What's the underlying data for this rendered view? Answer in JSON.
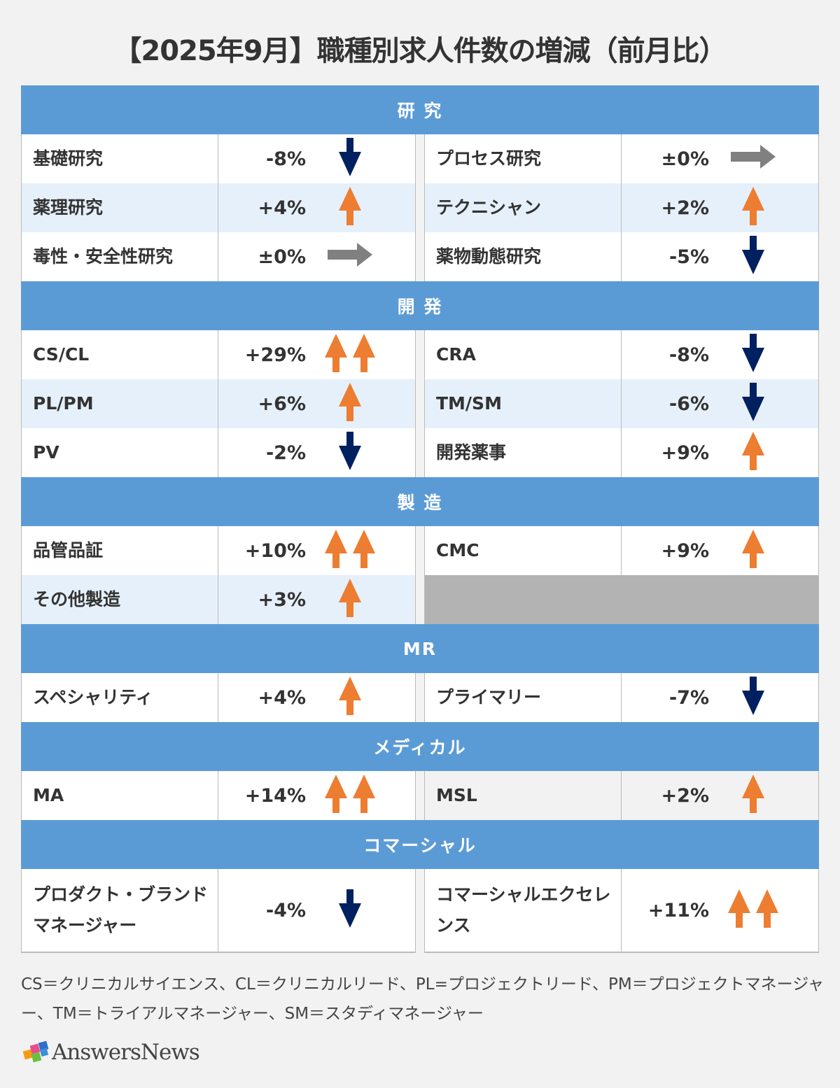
{
  "title": "【2025年9月】職種別求人件数の増減（前月比）",
  "colors": {
    "header": "#5b9bd5",
    "up": "#ed7d31",
    "down": "#002060",
    "flat": "#808080",
    "alt_row": "#e6f0fa"
  },
  "sections": [
    {
      "label": "研 究",
      "rows": [
        [
          {
            "name": "基礎研究",
            "value": "-8%",
            "arrow": "down"
          },
          {
            "name": "プロセス研究",
            "value": "±0%",
            "arrow": "flat"
          }
        ],
        [
          {
            "name": "薬理研究",
            "value": "+4%",
            "arrow": "up"
          },
          {
            "name": "テクニシャン",
            "value": "+2%",
            "arrow": "up"
          }
        ],
        [
          {
            "name": "毒性・安全性研究",
            "value": "±0%",
            "arrow": "flat"
          },
          {
            "name": "薬物動態研究",
            "value": "-5%",
            "arrow": "down"
          }
        ]
      ]
    },
    {
      "label": "開 発",
      "rows": [
        [
          {
            "name": "CS/CL",
            "value": "+29%",
            "arrow": "double-up"
          },
          {
            "name": "CRA",
            "value": "-8%",
            "arrow": "down"
          }
        ],
        [
          {
            "name": "PL/PM",
            "value": "+6%",
            "arrow": "up"
          },
          {
            "name": "TM/SM",
            "value": "-6%",
            "arrow": "down"
          }
        ],
        [
          {
            "name": "PV",
            "value": "-2%",
            "arrow": "down"
          },
          {
            "name": "開発薬事",
            "value": "+9%",
            "arrow": "up"
          }
        ]
      ]
    },
    {
      "label": "製 造",
      "rows": [
        [
          {
            "name": "品管品証",
            "value": "+10%",
            "arrow": "double-up"
          },
          {
            "name": "CMC",
            "value": "+9%",
            "arrow": "up"
          }
        ],
        [
          {
            "name": "その他製造",
            "value": "+3%",
            "arrow": "up"
          },
          null
        ]
      ]
    },
    {
      "label": "MR",
      "rows": [
        [
          {
            "name": "スペシャリティ",
            "value": "+4%",
            "arrow": "up"
          },
          {
            "name": "プライマリー",
            "value": "-7%",
            "arrow": "down"
          }
        ]
      ]
    },
    {
      "label": "メディカル",
      "rows": [
        [
          {
            "name": "MA",
            "value": "+14%",
            "arrow": "double-up"
          },
          {
            "name": "MSL",
            "value": "+2%",
            "arrow": "up",
            "shaded": true
          }
        ]
      ]
    },
    {
      "label": "コマーシャル",
      "tall": true,
      "rows": [
        [
          {
            "name": "プロダクト・ブランドマネージャー",
            "value": "-4%",
            "arrow": "down"
          },
          {
            "name": "コマーシャルエクセレンス",
            "value": "+11%",
            "arrow": "double-up"
          }
        ]
      ]
    }
  ],
  "footnote": "CS＝クリニカルサイエンス、CL＝クリニカルリード、PL=プロジェクトリード、PM＝プロジェクトマネージャー、TM＝トライアルマネージャー、SM＝スタディマネージャー",
  "logo": "AnswersNews"
}
